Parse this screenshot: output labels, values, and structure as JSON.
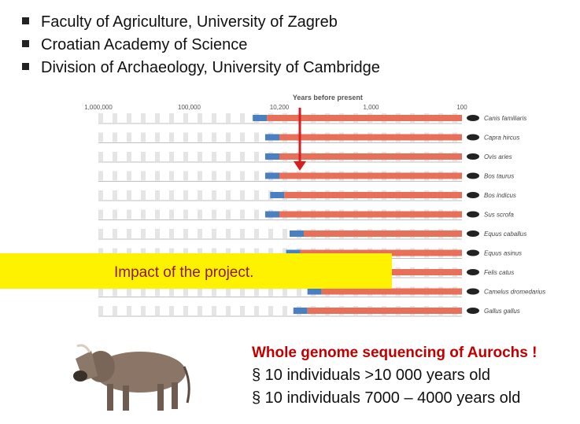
{
  "bullets": [
    "Faculty of Agriculture, University of Zagreb",
    "Croatian Academy of Science",
    "Division of Archaeology, University of Cambridge"
  ],
  "chart_data": {
    "type": "timeline",
    "title": "Years before present",
    "axis_ticks": [
      "1,000,000",
      "100,000",
      "10,200",
      "1,000",
      "100"
    ],
    "species": [
      {
        "name": "Canis familiaris",
        "start": 14000
      },
      {
        "name": "Capra hircus",
        "start": 10200
      },
      {
        "name": "Ovis aries",
        "start": 10200
      },
      {
        "name": "Bos taurus",
        "start": 10200
      },
      {
        "name": "Bos indicus",
        "start": 9000
      },
      {
        "name": "Sus scrofa",
        "start": 10200
      },
      {
        "name": "Equus caballus",
        "start": 5500
      },
      {
        "name": "Equus asinus",
        "start": 6000
      },
      {
        "name": "Felis catus",
        "start": 9500
      },
      {
        "name": "Camelus dromedarius",
        "start": 3500
      },
      {
        "name": "Gallus gallus",
        "start": 5000
      }
    ],
    "colors": {
      "bar": "#e8705a",
      "blue": "#4a7fc1",
      "stripe": "#cfcfcf",
      "arrow": "#d81e1e"
    }
  },
  "banner": "Impact of the project.",
  "genome": {
    "title": "Whole genome sequencing of Aurochs !",
    "lines": [
      "§ 10 individuals >10 000 years old",
      "§ 10 individuals 7000 – 4000 years old"
    ]
  }
}
